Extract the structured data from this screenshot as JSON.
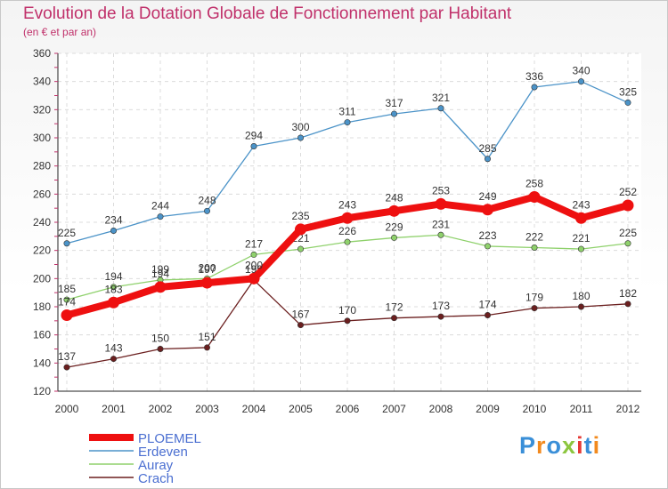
{
  "title": "Evolution de la Dotation Globale de Fonctionnement par Habitant",
  "subtitle": "(en € et par an)",
  "logo": {
    "text": "Proxiti",
    "letters": [
      "P",
      "r",
      "o",
      "x",
      "i",
      "t",
      "i"
    ],
    "colors": [
      "#3a8fd8",
      "#f28a1e",
      "#3a8fd8",
      "#8cc63f",
      "#e53935",
      "#3a8fd8",
      "#f28a1e"
    ]
  },
  "chart_data": {
    "type": "line",
    "title": "Evolution de la Dotation Globale de Fonctionnement par Habitant",
    "subtitle": "(en € et par an)",
    "xlabel": "",
    "ylabel": "",
    "categories": [
      "2000",
      "2001",
      "2002",
      "2003",
      "2004",
      "2005",
      "2006",
      "2007",
      "2008",
      "2009",
      "2010",
      "2011",
      "2012"
    ],
    "ylim": [
      120,
      360
    ],
    "yticks": [
      120,
      140,
      160,
      180,
      200,
      220,
      240,
      260,
      280,
      300,
      320,
      340,
      360
    ],
    "grid": true,
    "legend_position": "bottom-left",
    "series": [
      {
        "name": "Erdeven",
        "color": "#4b93c8",
        "values": [
          225,
          234,
          244,
          248,
          294,
          300,
          311,
          317,
          321,
          285,
          336,
          340,
          325
        ]
      },
      {
        "name": "Auray",
        "color": "#8fd16c",
        "values": [
          185,
          194,
          199,
          200,
          217,
          221,
          226,
          229,
          231,
          223,
          222,
          221,
          225
        ]
      },
      {
        "name": "Crach",
        "color": "#6b1f1f",
        "values": [
          137,
          143,
          150,
          151,
          199,
          167,
          170,
          172,
          173,
          174,
          179,
          180,
          182
        ]
      },
      {
        "name": "PLOEMEL",
        "color": "#ee1010",
        "values": [
          174,
          183,
          194,
          197,
          200,
          235,
          243,
          248,
          253,
          249,
          258,
          243,
          252
        ]
      }
    ],
    "legend_order": [
      "PLOEMEL",
      "Erdeven",
      "Auray",
      "Crach"
    ]
  }
}
